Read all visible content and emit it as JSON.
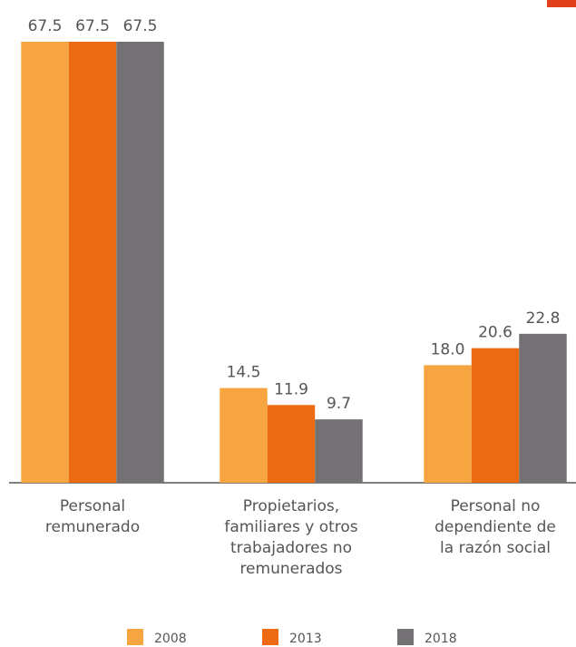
{
  "chart_data": {
    "type": "bar",
    "categories": [
      [
        "Personal",
        "remunerado"
      ],
      [
        "Propietarios,",
        "familiares y otros",
        "trabajadores no",
        "remunerados"
      ],
      [
        "Personal no",
        "dependiente de",
        "la razón social"
      ]
    ],
    "series": [
      {
        "name": "2008",
        "color": "#f7a541",
        "values": [
          67.5,
          14.5,
          18.0
        ],
        "value_labels": [
          "67.5",
          "14.5",
          "18.0"
        ]
      },
      {
        "name": "2013",
        "color": "#ec6a12",
        "values": [
          67.5,
          11.9,
          20.6
        ],
        "value_labels": [
          "67.5",
          "11.9",
          "20.6"
        ]
      },
      {
        "name": "2018",
        "color": "#737173",
        "values": [
          67.5,
          9.7,
          22.8
        ],
        "value_labels": [
          "67.5",
          "9.7",
          "22.8"
        ]
      }
    ]
  }
}
